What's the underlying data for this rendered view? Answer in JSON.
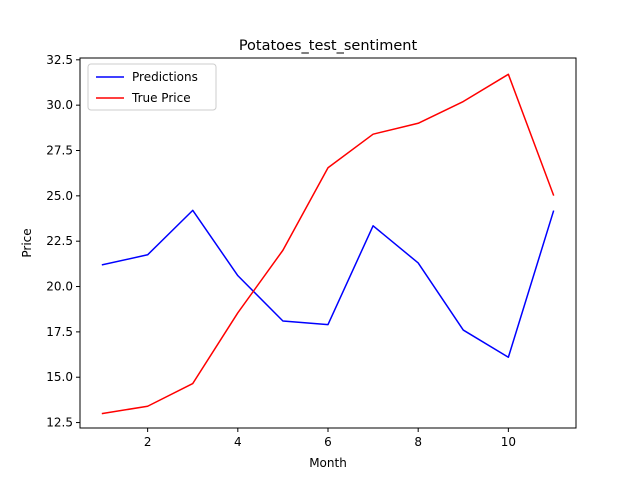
{
  "chart_data": {
    "type": "line",
    "title": "Potatoes_test_sentiment",
    "xlabel": "Month",
    "ylabel": "Price",
    "xlim": [
      0.5,
      11.5
    ],
    "ylim": [
      12.2,
      32.6
    ],
    "xticks": [
      2,
      4,
      6,
      8,
      10
    ],
    "yticks": [
      12.5,
      15.0,
      17.5,
      20.0,
      22.5,
      25.0,
      27.5,
      30.0,
      32.5
    ],
    "grid": false,
    "legend_position": "top-left",
    "x": [
      1,
      2,
      3,
      4,
      5,
      6,
      7,
      8,
      9,
      10,
      11
    ],
    "series": [
      {
        "name": "Predictions",
        "color": "#0000ff",
        "values": [
          21.2,
          21.75,
          24.2,
          20.6,
          18.1,
          17.9,
          23.35,
          21.3,
          17.6,
          16.1,
          24.15
        ]
      },
      {
        "name": "True Price",
        "color": "#ff0000",
        "values": [
          13.0,
          13.4,
          14.65,
          18.55,
          22.0,
          26.55,
          28.4,
          29.0,
          30.2,
          31.7,
          25.05
        ]
      }
    ]
  }
}
